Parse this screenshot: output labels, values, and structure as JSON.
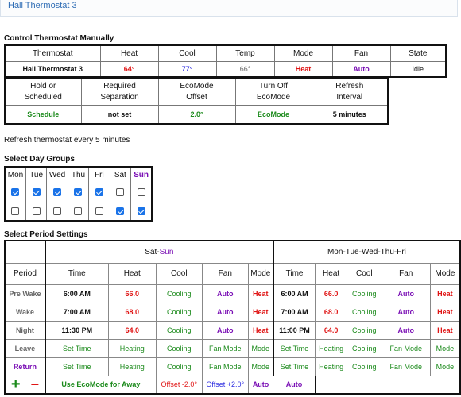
{
  "header": {
    "title": "Hall Thermostat 3"
  },
  "control": {
    "section_title": "Control Thermostat Manually",
    "headers": [
      "Thermostat",
      "Heat",
      "Cool",
      "Temp",
      "Mode",
      "Fan",
      "State"
    ],
    "values": {
      "thermostat": "Hall Thermostat 3",
      "heat": "64°",
      "cool": "77°",
      "temp": "66°",
      "mode": "Heat",
      "fan": "Auto",
      "state": "Idle"
    }
  },
  "settings": {
    "headers": [
      [
        "Hold or",
        "Scheduled"
      ],
      [
        "Required",
        "Separation"
      ],
      [
        "EcoMode",
        "Offset"
      ],
      [
        "Turn Off",
        "EcoMode"
      ],
      [
        "Refresh",
        "Interval"
      ]
    ],
    "values": {
      "hold": "Schedule",
      "separation": "not set",
      "eco_offset": "2.0°",
      "turn_off": "EcoMode",
      "refresh": "5 minutes"
    }
  },
  "refresh_note": "Refresh thermostat every 5 minutes",
  "day_groups": {
    "section_title": "Select Day Groups",
    "days": [
      "Mon",
      "Tue",
      "Wed",
      "Thu",
      "Fri",
      "Sat",
      "Sun"
    ],
    "rows": [
      [
        true,
        true,
        true,
        true,
        true,
        false,
        false
      ],
      [
        false,
        false,
        false,
        false,
        false,
        true,
        true
      ]
    ]
  },
  "periods": {
    "section_title": "Select Period Settings",
    "group1": {
      "prefix": "Sat-",
      "suffix": "Sun"
    },
    "group2": "Mon-Tue-Wed-Thu-Fri",
    "col_period": "Period",
    "col_headers": [
      "Time",
      "Heat",
      "Cool",
      "Fan",
      "Mode"
    ],
    "rows": [
      {
        "period": "Pre Wake",
        "g1": {
          "time": "6:00 AM",
          "heat": "66.0",
          "cool": "Cooling",
          "fan": "Auto",
          "mode": "Heat"
        },
        "g2": {
          "time": "6:00 AM",
          "heat": "66.0",
          "cool": "Cooling",
          "fan": "Auto",
          "mode": "Heat"
        }
      },
      {
        "period": "Wake",
        "g1": {
          "time": "7:00 AM",
          "heat": "68.0",
          "cool": "Cooling",
          "fan": "Auto",
          "mode": "Heat"
        },
        "g2": {
          "time": "7:00 AM",
          "heat": "68.0",
          "cool": "Cooling",
          "fan": "Auto",
          "mode": "Heat"
        }
      },
      {
        "period": "Night",
        "g1": {
          "time": "11:30 PM",
          "heat": "64.0",
          "cool": "Cooling",
          "fan": "Auto",
          "mode": "Heat"
        },
        "g2": {
          "time": "11:00 PM",
          "heat": "64.0",
          "cool": "Cooling",
          "fan": "Auto",
          "mode": "Heat"
        }
      },
      {
        "period": "Leave",
        "g1": {
          "time": "Set Time",
          "heat": "Heating",
          "cool": "Cooling",
          "fan": "Fan Mode",
          "mode": "Mode"
        },
        "g2": {
          "time": "Set Time",
          "heat": "Heating",
          "cool": "Cooling",
          "fan": "Fan Mode",
          "mode": "Mode"
        }
      },
      {
        "period": "Return",
        "g1": {
          "time": "Set Time",
          "heat": "Heating",
          "cool": "Cooling",
          "fan": "Fan Mode",
          "mode": "Mode"
        },
        "g2": {
          "time": "Set Time",
          "heat": "Heating",
          "cool": "Cooling",
          "fan": "Fan Mode",
          "mode": "Mode"
        }
      }
    ],
    "actions": {
      "add": "+",
      "remove": "−",
      "eco_away": "Use EcoMode for Away",
      "offset_heat": "Offset -2.0°",
      "offset_cool": "Offset +2.0°",
      "fan": "Auto",
      "mode": "Auto"
    }
  },
  "colors": {
    "heat": "#e01515",
    "cool": "#2a2ae0",
    "green": "#1b8a1b",
    "purple": "#7a0fb5",
    "link": "#2f6db5"
  }
}
